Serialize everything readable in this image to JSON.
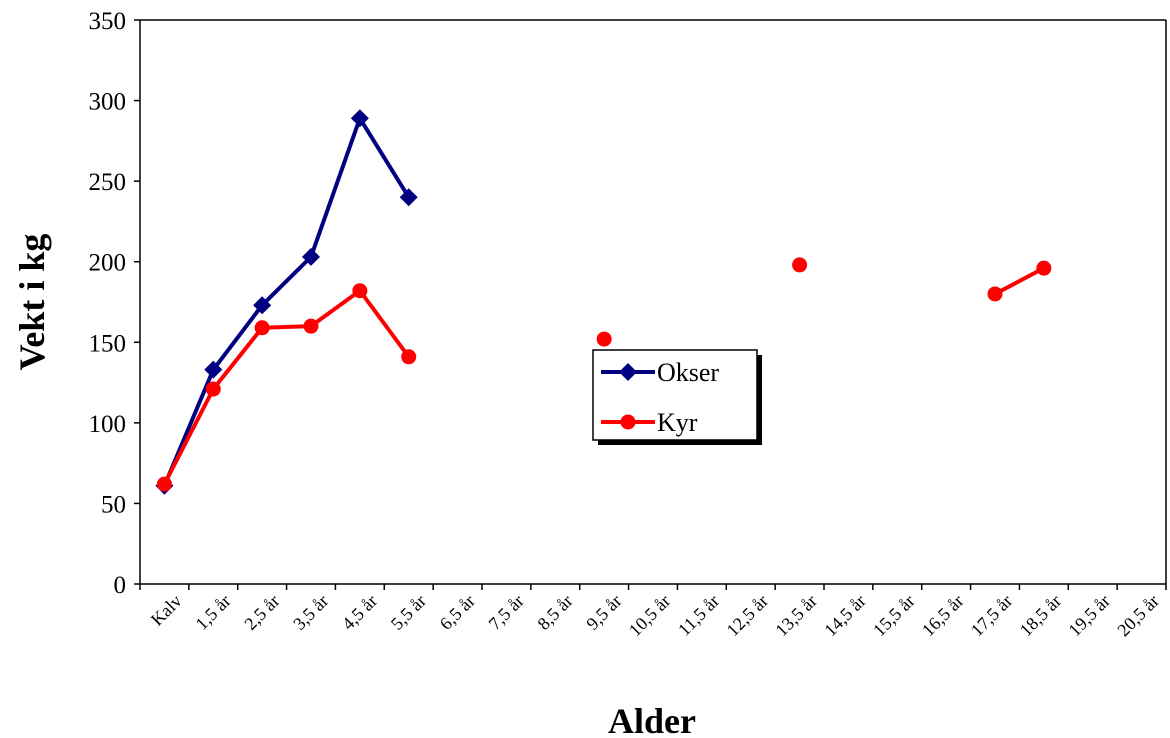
{
  "chart_data": {
    "type": "line",
    "title": "",
    "xlabel": "Alder",
    "ylabel": "Vekt i kg",
    "ylim": [
      0,
      350
    ],
    "yticks": [
      0,
      50,
      100,
      150,
      200,
      250,
      300,
      350
    ],
    "categories": [
      "Kalv",
      "1,5 år",
      "2,5 år",
      "3,5 år",
      "4,5 år",
      "5,5 år",
      "6,5 år",
      "7,5 år",
      "8,5 år",
      "9,5 år",
      "10,5 år",
      "11,5 år",
      "12,5 år",
      "13,5 år",
      "14,5 år",
      "15,5 år",
      "16,5 år",
      "17,5 år",
      "18,5 år",
      "19,5 år",
      "20,5 år"
    ],
    "grid": false,
    "legend_position": "center",
    "series": [
      {
        "name": "Okser",
        "color": "#000080",
        "marker": "diamond",
        "values": [
          61,
          133,
          173,
          203,
          289,
          240,
          null,
          null,
          null,
          null,
          null,
          null,
          null,
          null,
          null,
          null,
          null,
          null,
          null,
          null,
          null
        ]
      },
      {
        "name": "Kyr",
        "color": "#ff0000",
        "marker": "circle",
        "values": [
          62,
          121,
          159,
          160,
          182,
          141,
          null,
          null,
          null,
          152,
          null,
          null,
          null,
          198,
          null,
          null,
          null,
          180,
          196,
          null,
          null
        ]
      }
    ]
  }
}
